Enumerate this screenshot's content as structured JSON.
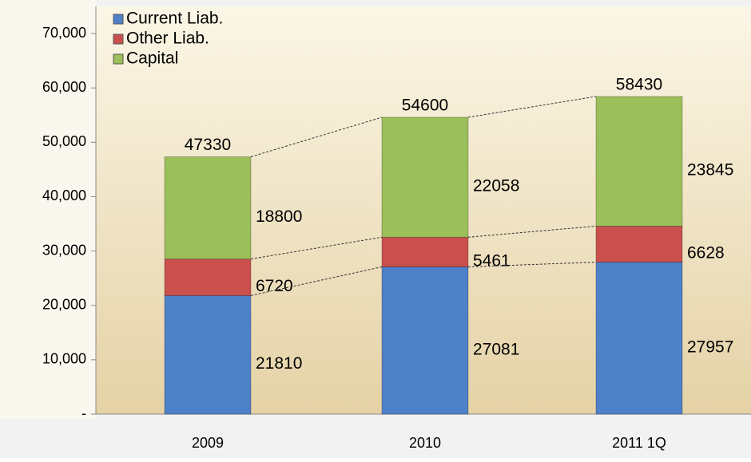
{
  "chart_data": {
    "type": "stacked_bar",
    "categories": [
      "2009",
      "2010",
      "2011 1Q"
    ],
    "series": [
      {
        "name": "Current Liab.",
        "color": "#4f81c9",
        "values": [
          21810,
          27081,
          27957
        ]
      },
      {
        "name": "Other Liab.",
        "color": "#c9504d",
        "values": [
          6720,
          5461,
          6628
        ]
      },
      {
        "name": "Capital",
        "color": "#9bbf5a",
        "values": [
          18800,
          22058,
          23845
        ]
      }
    ],
    "totals": [
      47330,
      54600,
      58430
    ],
    "ylim": [
      0,
      75000
    ],
    "yticks": [
      {
        "value": 0,
        "label": "-"
      },
      {
        "value": 10000,
        "label": "10,000"
      },
      {
        "value": 20000,
        "label": "20,000"
      },
      {
        "value": 30000,
        "label": "30,000"
      },
      {
        "value": 40000,
        "label": "40,000"
      },
      {
        "value": 50000,
        "label": "50,000"
      },
      {
        "value": 60000,
        "label": "60,000"
      },
      {
        "value": 70000,
        "label": "70,000"
      }
    ],
    "legend": "top-left"
  }
}
